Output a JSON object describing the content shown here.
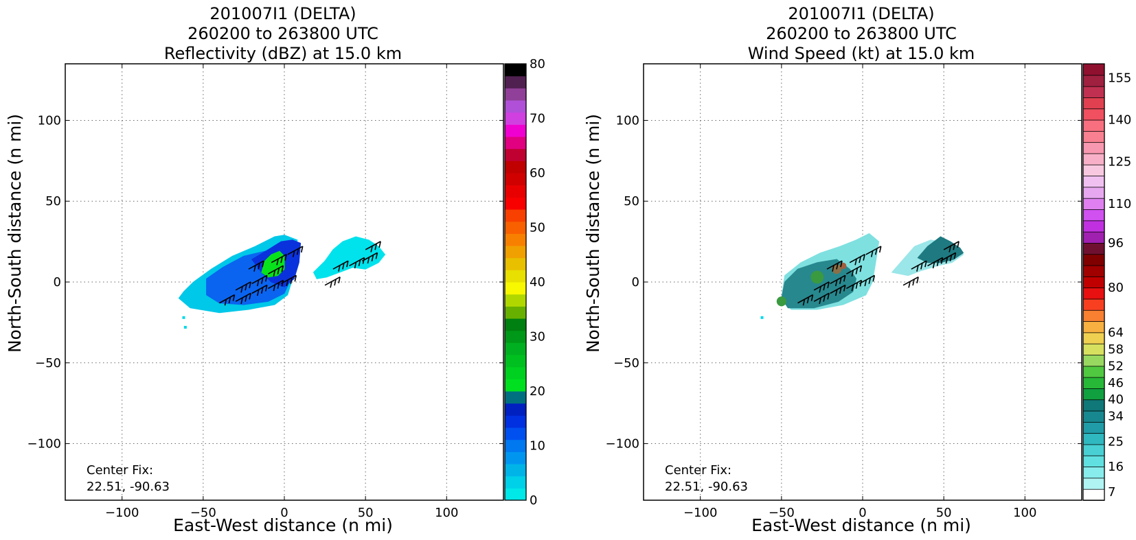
{
  "chart_data": [
    {
      "type": "heatmap",
      "title_lines": [
        "201007I1 (DELTA)",
        "260200 to 263800 UTC",
        "Reflectivity (dBZ) at 15.0 km"
      ],
      "xlabel": "East-West distance (n mi)",
      "ylabel": "North-South distance (n mi)",
      "xlim": [
        -135,
        135
      ],
      "ylim": [
        -135,
        135
      ],
      "xticks": [
        -100,
        -50,
        0,
        50,
        100
      ],
      "yticks": [
        -100,
        -50,
        0,
        50,
        100
      ],
      "x_tick_labels": [
        "−100",
        "−50",
        "0",
        "50",
        "100"
      ],
      "y_tick_labels": [
        "−100",
        "−50",
        "0",
        "50",
        "100"
      ],
      "grid": true,
      "annotation_lines": [
        "Center Fix:",
        "22.51, -90.63"
      ],
      "colorbar": {
        "min": 0,
        "max": 80,
        "tick_values": [
          0,
          10,
          20,
          30,
          40,
          50,
          60,
          70,
          80
        ],
        "tick_labels": [
          "0",
          "10",
          "20",
          "30",
          "40",
          "50",
          "60",
          "70",
          "80"
        ],
        "colors": [
          "#00e8e8",
          "#00d0e8",
          "#00b4e8",
          "#0096f0",
          "#0078f0",
          "#0050f0",
          "#0030e0",
          "#0020c0",
          "#007080",
          "#00e020",
          "#00d020",
          "#00c020",
          "#00b020",
          "#009818",
          "#008010",
          "#68b000",
          "#b0d800",
          "#f8f800",
          "#e8e000",
          "#e8c000",
          "#f0a000",
          "#f88000",
          "#f86000",
          "#f84000",
          "#f80000",
          "#e80000",
          "#d00000",
          "#c00000",
          "#c00030",
          "#e00080",
          "#f000d0",
          "#d040e0",
          "#b050d8",
          "#904098",
          "#502050",
          "#000000"
        ]
      },
      "echo_regions": [
        {
          "label": "main-echo-outer",
          "color": "#00c8e8",
          "points": [
            [
              -65,
              -10
            ],
            [
              -58,
              -16
            ],
            [
              -40,
              -19
            ],
            [
              -22,
              -17
            ],
            [
              -6,
              -14
            ],
            [
              2,
              -8
            ],
            [
              5,
              2
            ],
            [
              5,
              15
            ],
            [
              8,
              26
            ],
            [
              0,
              29
            ],
            [
              -6,
              28
            ],
            [
              -18,
              22
            ],
            [
              -32,
              16
            ],
            [
              -45,
              8
            ],
            [
              -56,
              0
            ],
            [
              -62,
              -6
            ]
          ]
        },
        {
          "label": "main-echo-blue",
          "color": "#0a64f0",
          "points": [
            [
              -48,
              2
            ],
            [
              -38,
              9
            ],
            [
              -25,
              16
            ],
            [
              -12,
              19
            ],
            [
              -2,
              20
            ],
            [
              4,
              15
            ],
            [
              4,
              2
            ],
            [
              0,
              -7
            ],
            [
              -10,
              -12
            ],
            [
              -25,
              -14
            ],
            [
              -40,
              -13
            ],
            [
              -48,
              -8
            ]
          ]
        },
        {
          "label": "main-echo-darkblue",
          "color": "#0a32dc",
          "points": [
            [
              -20,
              14
            ],
            [
              -10,
              20
            ],
            [
              -2,
              25
            ],
            [
              5,
              26
            ],
            [
              10,
              24
            ],
            [
              9,
              12
            ],
            [
              6,
              2
            ],
            [
              0,
              -3
            ],
            [
              -8,
              0
            ],
            [
              -14,
              6
            ]
          ]
        },
        {
          "label": "main-echo-green",
          "color": "#08e21c",
          "points": [
            [
              -14,
              6
            ],
            [
              -12,
              13
            ],
            [
              -8,
              17
            ],
            [
              -3,
              19
            ],
            [
              0,
              16
            ],
            [
              0,
              8
            ],
            [
              -4,
              4
            ],
            [
              -10,
              3
            ]
          ]
        },
        {
          "label": "east-echo",
          "color": "#00e2ec",
          "points": [
            [
              18,
              6
            ],
            [
              25,
              13
            ],
            [
              30,
              20
            ],
            [
              36,
              25
            ],
            [
              44,
              28
            ],
            [
              52,
              26
            ],
            [
              58,
              22
            ],
            [
              62,
              17
            ],
            [
              58,
              12
            ],
            [
              50,
              8
            ],
            [
              42,
              9
            ],
            [
              34,
              6
            ],
            [
              26,
              3
            ],
            [
              20,
              2
            ]
          ]
        }
      ],
      "specks": [
        [
          -62,
          -22
        ],
        [
          -61,
          -28
        ]
      ],
      "wind_barbs": [
        [
          -40,
          -13
        ],
        [
          -30,
          -12
        ],
        [
          -20,
          -7
        ],
        [
          -10,
          -4
        ],
        [
          -2,
          -1
        ],
        [
          -30,
          -5
        ],
        [
          -20,
          -1
        ],
        [
          -10,
          5
        ],
        [
          -22,
          8
        ],
        [
          -8,
          12
        ],
        [
          2,
          17
        ],
        [
          25,
          -2
        ],
        [
          30,
          8
        ],
        [
          40,
          10
        ],
        [
          48,
          13
        ],
        [
          50,
          20
        ]
      ]
    },
    {
      "type": "heatmap",
      "title_lines": [
        "201007I1 (DELTA)",
        "260200 to 263800 UTC",
        "Wind Speed (kt) at 15.0 km"
      ],
      "xlabel": "East-West distance (n mi)",
      "ylabel": "North-South distance (n mi)",
      "xlim": [
        -135,
        135
      ],
      "ylim": [
        -135,
        135
      ],
      "xticks": [
        -100,
        -50,
        0,
        50,
        100
      ],
      "yticks": [
        -100,
        -50,
        0,
        50,
        100
      ],
      "x_tick_labels": [
        "−100",
        "−50",
        "0",
        "50",
        "100"
      ],
      "y_tick_labels": [
        "−100",
        "−50",
        "0",
        "50",
        "100"
      ],
      "grid": true,
      "annotation_lines": [
        "Center Fix:",
        "22.51, -90.63"
      ],
      "colorbar": {
        "min": 4,
        "max": 160,
        "tick_values": [
          7,
          16,
          25,
          34,
          40,
          46,
          52,
          58,
          64,
          80,
          96,
          110,
          125,
          140,
          155
        ],
        "tick_labels": [
          "7",
          "16",
          "25",
          "34",
          "40",
          "46",
          "52",
          "58",
          "64",
          "80",
          "96",
          "110",
          "125",
          "140",
          "155"
        ],
        "colors": [
          "#ffffff",
          "#b0f4f4",
          "#88ecec",
          "#60e0e0",
          "#48d0d4",
          "#30b8c0",
          "#209ca8",
          "#188890",
          "#107878",
          "#10a040",
          "#28b838",
          "#50c840",
          "#98d860",
          "#d8e060",
          "#f0d050",
          "#f8b040",
          "#f88030",
          "#f84020",
          "#e81010",
          "#c00000",
          "#a00000",
          "#800000",
          "#701030",
          "#a020b0",
          "#c030e0",
          "#d050f0",
          "#e080f0",
          "#e8a8f0",
          "#f0c0f0",
          "#f8c8e0",
          "#f8b0c8",
          "#f898b0",
          "#f88090",
          "#f87080",
          "#f05060",
          "#e04050",
          "#c03050",
          "#a02040",
          "#901030"
        ]
      },
      "echo_regions": [
        {
          "label": "main-echo-outer",
          "color": "#7fe0e0",
          "points": [
            [
              -50,
              -10
            ],
            [
              -44,
              -17
            ],
            [
              -28,
              -17
            ],
            [
              -12,
              -14
            ],
            [
              2,
              -8
            ],
            [
              6,
              0
            ],
            [
              8,
              12
            ],
            [
              10,
              25
            ],
            [
              4,
              30
            ],
            [
              -4,
              26
            ],
            [
              -14,
              22
            ],
            [
              -26,
              18
            ],
            [
              -38,
              12
            ],
            [
              -48,
              4
            ]
          ]
        },
        {
          "label": "main-echo-core",
          "color": "#27888e",
          "points": [
            [
              -50,
              -10
            ],
            [
              -46,
              -16
            ],
            [
              -30,
              -16
            ],
            [
              -15,
              -12
            ],
            [
              -6,
              -6
            ],
            [
              -4,
              2
            ],
            [
              -8,
              8
            ],
            [
              -16,
              14
            ],
            [
              -28,
              12
            ],
            [
              -40,
              8
            ],
            [
              -48,
              0
            ]
          ]
        },
        {
          "label": "east-echo-light",
          "color": "#9ae6e8",
          "points": [
            [
              18,
              6
            ],
            [
              25,
              14
            ],
            [
              32,
              22
            ],
            [
              42,
              26
            ],
            [
              52,
              24
            ],
            [
              58,
              20
            ],
            [
              62,
              17
            ],
            [
              55,
              12
            ],
            [
              46,
              10
            ],
            [
              36,
              7
            ],
            [
              28,
              4
            ]
          ]
        },
        {
          "label": "east-echo-core",
          "color": "#1e7a80",
          "points": [
            [
              34,
              15
            ],
            [
              40,
              22
            ],
            [
              48,
              28
            ],
            [
              54,
              25
            ],
            [
              60,
              21
            ],
            [
              62,
              18
            ],
            [
              56,
              14
            ],
            [
              48,
              12
            ],
            [
              40,
              12
            ]
          ]
        }
      ],
      "hotspots": [
        {
          "color": "#3a9a40",
          "center": [
            -50,
            -12
          ],
          "r": 3
        },
        {
          "color": "#3a9a40",
          "center": [
            -28,
            3
          ],
          "r": 4
        },
        {
          "color": "#8a7048",
          "center": [
            -16,
            8
          ],
          "r": 3
        },
        {
          "color": "#a06040",
          "center": [
            -12,
            10
          ],
          "r": 2
        }
      ],
      "specks": [
        [
          -62,
          -22
        ]
      ],
      "wind_barbs": [
        [
          -40,
          -13
        ],
        [
          -30,
          -12
        ],
        [
          -20,
          -7
        ],
        [
          -10,
          -4
        ],
        [
          -2,
          -1
        ],
        [
          -30,
          -5
        ],
        [
          -20,
          -1
        ],
        [
          -10,
          5
        ],
        [
          -22,
          8
        ],
        [
          -8,
          12
        ],
        [
          2,
          17
        ],
        [
          25,
          -2
        ],
        [
          30,
          8
        ],
        [
          40,
          10
        ],
        [
          48,
          13
        ],
        [
          50,
          20
        ]
      ]
    }
  ]
}
